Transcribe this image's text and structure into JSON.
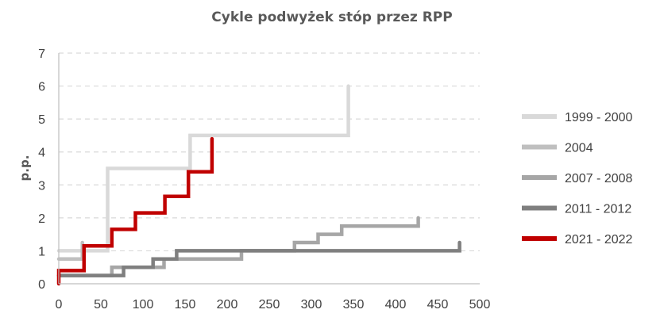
{
  "chart_data": {
    "type": "line",
    "title": "Cykle podwyżek stóp przez RPP",
    "xlabel": "",
    "ylabel": "p.p.",
    "xlim": [
      0,
      500
    ],
    "ylim": [
      0,
      7
    ],
    "x_ticks": [
      0,
      50,
      100,
      150,
      200,
      250,
      300,
      350,
      400,
      450,
      500
    ],
    "y_ticks": [
      0,
      1,
      2,
      3,
      4,
      5,
      6,
      7
    ],
    "grid": "horizontal-dashed",
    "legend_position": "right",
    "series": [
      {
        "name": "1999 - 2000",
        "color": "#d9d9d9",
        "step": true,
        "points": [
          [
            0,
            1.0
          ],
          [
            58,
            1.0
          ],
          [
            58,
            3.5
          ],
          [
            156,
            3.5
          ],
          [
            156,
            4.5
          ],
          [
            344,
            4.5
          ],
          [
            344,
            6.0
          ]
        ]
      },
      {
        "name": "2004",
        "color": "#bfbfbf",
        "step": true,
        "points": [
          [
            0,
            0.75
          ],
          [
            28,
            0.75
          ],
          [
            28,
            1.25
          ]
        ]
      },
      {
        "name": "2007 - 2008",
        "color": "#a6a6a6",
        "step": true,
        "points": [
          [
            0,
            0.25
          ],
          [
            63,
            0.25
          ],
          [
            63,
            0.5
          ],
          [
            125,
            0.5
          ],
          [
            125,
            0.75
          ],
          [
            217,
            0.75
          ],
          [
            217,
            1.0
          ],
          [
            280,
            1.0
          ],
          [
            280,
            1.25
          ],
          [
            308,
            1.25
          ],
          [
            308,
            1.5
          ],
          [
            336,
            1.5
          ],
          [
            336,
            1.75
          ],
          [
            427,
            1.75
          ],
          [
            427,
            2.0
          ]
        ]
      },
      {
        "name": "2011 - 2012",
        "color": "#7f7f7f",
        "step": true,
        "points": [
          [
            0,
            0.25
          ],
          [
            77,
            0.25
          ],
          [
            77,
            0.5
          ],
          [
            112,
            0.5
          ],
          [
            112,
            0.75
          ],
          [
            140,
            0.75
          ],
          [
            140,
            1.0
          ],
          [
            476,
            1.0
          ],
          [
            476,
            1.25
          ]
        ]
      },
      {
        "name": "2021 - 2022",
        "color": "#c00000",
        "step": true,
        "points": [
          [
            0,
            0.0
          ],
          [
            0,
            0.4
          ],
          [
            30,
            0.4
          ],
          [
            30,
            1.15
          ],
          [
            63,
            1.15
          ],
          [
            63,
            1.65
          ],
          [
            91,
            1.65
          ],
          [
            91,
            2.15
          ],
          [
            126,
            2.15
          ],
          [
            126,
            2.65
          ],
          [
            154,
            2.65
          ],
          [
            154,
            3.4
          ],
          [
            182,
            3.4
          ],
          [
            182,
            4.4
          ]
        ]
      }
    ]
  }
}
